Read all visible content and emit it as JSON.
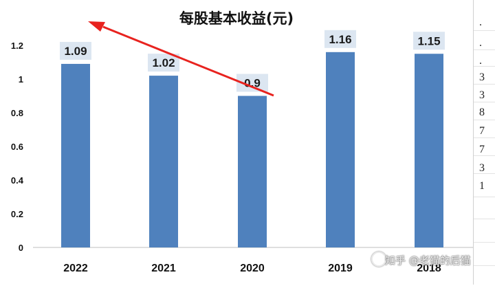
{
  "chart_data": {
    "type": "bar",
    "title": "每股基本收益(元)",
    "xlabel": "",
    "ylabel": "",
    "categories": [
      "2022",
      "2021",
      "2020",
      "2019",
      "2018"
    ],
    "values": [
      1.09,
      1.02,
      0.9,
      1.16,
      1.15
    ],
    "data_labels": [
      "1.09",
      "1.02",
      "0.9",
      "1.16",
      "1.15"
    ],
    "yticks": [
      "0",
      "0.2",
      "0.4",
      "0.6",
      "0.8",
      "1",
      "1.2"
    ],
    "ylim": [
      0,
      1.2
    ],
    "grid": false,
    "legend": "none",
    "bar_color": "#4f81bd",
    "label_bg_color": "#dce6f1",
    "annotation_arrow_color": "#e8231f"
  },
  "side_strip": {
    "chars": [
      ".",
      ".",
      ".",
      "3",
      "3",
      "8",
      "7",
      "7",
      "3",
      "1"
    ]
  },
  "watermark": {
    "text": "知乎 @老猫的后猫"
  }
}
